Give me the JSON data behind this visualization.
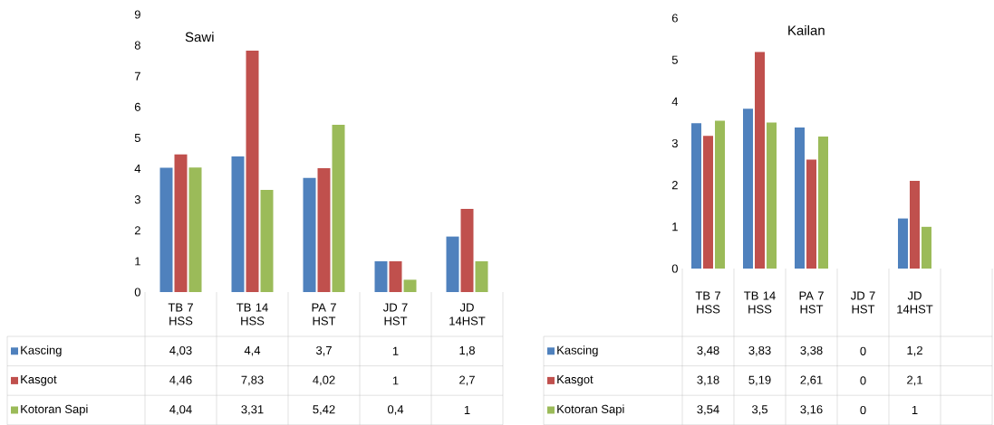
{
  "chart_data": [
    {
      "type": "bar",
      "title": "Sawi",
      "categories": [
        "TB 7 HSS",
        "TB 14 HSS",
        "PA 7 HST",
        "JD 7 HST",
        "JD 14HST"
      ],
      "ylim": [
        0,
        9
      ],
      "yticks": [
        0,
        1,
        2,
        3,
        4,
        5,
        6,
        7,
        8,
        9
      ],
      "legend": "bottom",
      "series": [
        {
          "name": "Kascing",
          "color": "#4f81bd",
          "values": [
            4.03,
            4.4,
            3.7,
            1,
            1.8
          ],
          "value_labels": [
            "4,03",
            "4,4",
            "3,7",
            "1",
            "1,8"
          ]
        },
        {
          "name": "Kasgot",
          "color": "#c0504d",
          "values": [
            4.46,
            7.83,
            4.02,
            1,
            2.7
          ],
          "value_labels": [
            "4,46",
            "7,83",
            "4,02",
            "1",
            "2,7"
          ]
        },
        {
          "name": "Kotoran Sapi",
          "color": "#9bbb59",
          "values": [
            4.04,
            3.31,
            5.42,
            0.4,
            1
          ],
          "value_labels": [
            "4,04",
            "3,31",
            "5,42",
            "0,4",
            "1"
          ]
        }
      ]
    },
    {
      "type": "bar",
      "title": "Kailan",
      "categories": [
        "TB 7 HSS",
        "TB 14 HSS",
        "PA 7 HST",
        "JD 7 HST",
        "JD 14HST",
        null
      ],
      "ylim": [
        0,
        6
      ],
      "yticks": [
        0,
        1,
        2,
        3,
        4,
        5,
        6
      ],
      "legend": "bottom",
      "series": [
        {
          "name": "Kascing",
          "color": "#4f81bd",
          "values": [
            3.48,
            3.83,
            3.38,
            0,
            1.2,
            null
          ],
          "value_labels": [
            "3,48",
            "3,83",
            "3,38",
            "0",
            "1,2",
            null
          ]
        },
        {
          "name": "Kasgot",
          "color": "#c0504d",
          "values": [
            3.18,
            5.19,
            2.61,
            0,
            2.1,
            null
          ],
          "value_labels": [
            "3,18",
            "5,19",
            "2,61",
            "0",
            "2,1",
            null
          ]
        },
        {
          "name": "Kotoran Sapi",
          "color": "#9bbb59",
          "values": [
            3.54,
            3.5,
            3.16,
            0,
            1,
            null
          ],
          "value_labels": [
            "3,54",
            "3,5",
            "3,16",
            "0",
            "1",
            null
          ]
        }
      ]
    }
  ]
}
